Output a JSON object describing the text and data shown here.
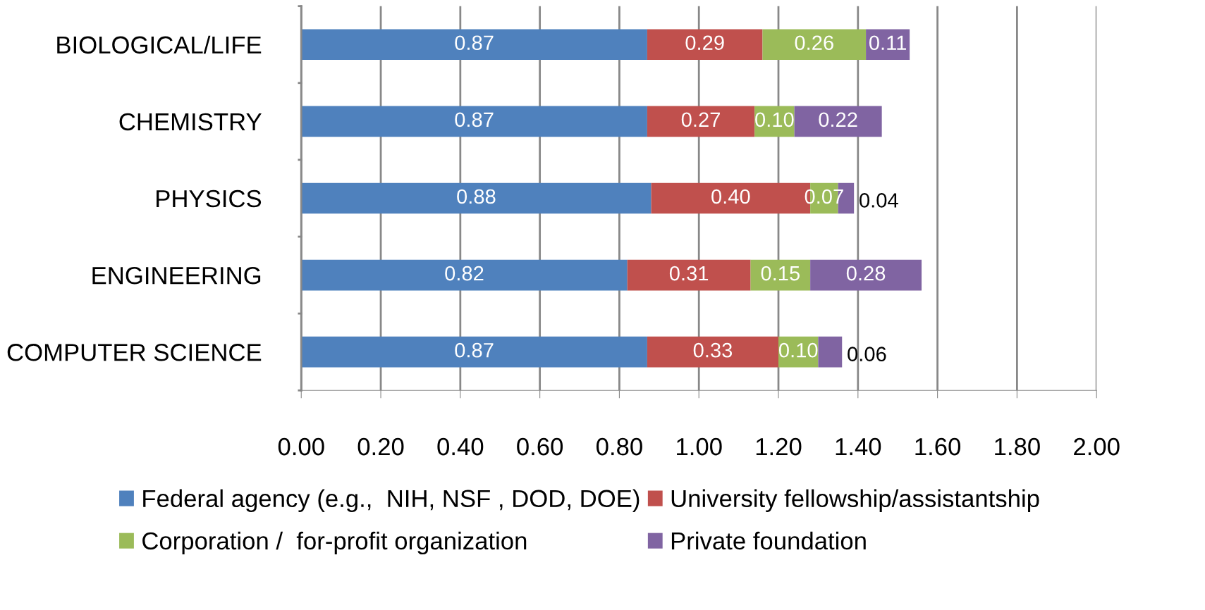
{
  "chart_data": {
    "type": "bar",
    "orientation": "horizontal",
    "stacked": true,
    "categories": [
      "BIOLOGICAL/LIFE",
      "CHEMISTRY",
      "PHYSICS",
      "ENGINEERING",
      "COMPUTER SCIENCE"
    ],
    "series": [
      {
        "name": "Federal agency (e.g.,  NIH, NSF , DOD, DOE)",
        "color": "#4f81bd",
        "values": [
          0.87,
          0.87,
          0.88,
          0.82,
          0.87
        ],
        "value_labels": [
          "0.87",
          "0.87",
          "0.88",
          "0.82",
          "0.87"
        ]
      },
      {
        "name": "University fellowship/assistantship",
        "color": "#c0504d",
        "values": [
          0.29,
          0.27,
          0.4,
          0.31,
          0.33
        ],
        "value_labels": [
          "0.29",
          "0.27",
          "0.40",
          "0.31",
          "0.33"
        ]
      },
      {
        "name": "Corporation /  for-profit organization",
        "color": "#9bbb59",
        "values": [
          0.26,
          0.1,
          0.07,
          0.15,
          0.1
        ],
        "value_labels": [
          "0.26",
          "0.10",
          "0.07",
          "0.15",
          "0.10"
        ]
      },
      {
        "name": "Private foundation",
        "color": "#8064a2",
        "values": [
          0.11,
          0.22,
          0.04,
          0.28,
          0.06
        ],
        "value_labels": [
          "0.11",
          "0.22",
          "0.04",
          "0.28",
          "0.06"
        ]
      }
    ],
    "xlim": [
      0,
      2
    ],
    "xticks": [
      {
        "value": 0,
        "label": "0.00"
      },
      {
        "value": 0.2,
        "label": "0.20"
      },
      {
        "value": 0.4,
        "label": "0.40"
      },
      {
        "value": 0.6,
        "label": "0.60"
      },
      {
        "value": 0.8,
        "label": "0.80"
      },
      {
        "value": 1.0,
        "label": "1.00"
      },
      {
        "value": 1.2,
        "label": "1.20"
      },
      {
        "value": 1.4,
        "label": "1.40"
      },
      {
        "value": 1.6,
        "label": "1.60"
      },
      {
        "value": 1.8,
        "label": "1.80"
      },
      {
        "value": 2.0,
        "label": "2.00"
      }
    ],
    "grid": "x",
    "legend": "bottom"
  }
}
